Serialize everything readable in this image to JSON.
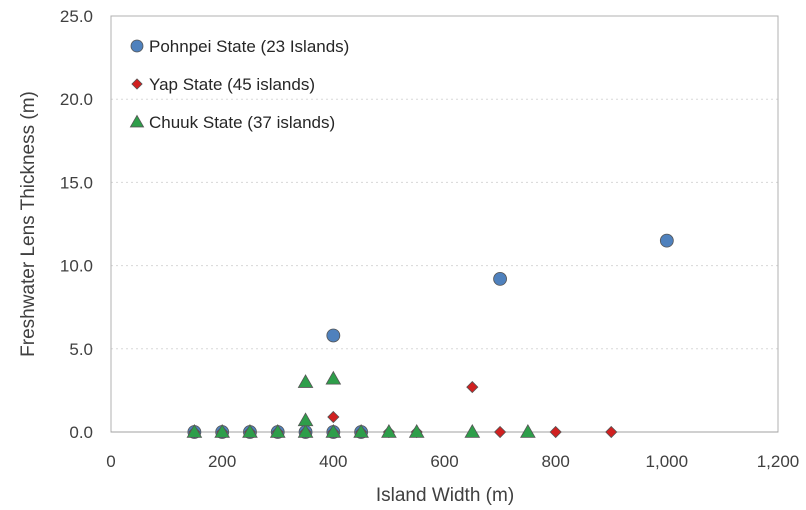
{
  "chart_data": {
    "type": "scatter",
    "xlabel": "Island Width (m)",
    "ylabel": "Freshwater Lens Thickness (m)",
    "xlim": [
      0,
      1200
    ],
    "ylim": [
      0,
      25
    ],
    "x_ticks": [
      0,
      200,
      400,
      600,
      800,
      1000,
      1200
    ],
    "x_tick_labels": [
      "0",
      "200",
      "400",
      "600",
      "800",
      "1,000",
      "1,200"
    ],
    "y_ticks": [
      0,
      5,
      10,
      15,
      20,
      25
    ],
    "y_tick_labels": [
      "0.0",
      "5.0",
      "10.0",
      "15.0",
      "20.0",
      "25.0"
    ],
    "grid": "horizontal dotted",
    "legend_position": "top-left",
    "series": [
      {
        "name": "Pohnpei State (23 Islands)",
        "marker": "circle",
        "color": "#4f81bd",
        "points": [
          [
            150,
            0
          ],
          [
            200,
            0
          ],
          [
            250,
            0
          ],
          [
            300,
            0
          ],
          [
            350,
            0
          ],
          [
            400,
            0
          ],
          [
            450,
            0
          ],
          [
            400,
            5.8
          ],
          [
            700,
            9.2
          ],
          [
            1000,
            11.5
          ]
        ]
      },
      {
        "name": "Yap State (45 islands)",
        "marker": "diamond",
        "color": "#d02020",
        "points": [
          [
            150,
            0
          ],
          [
            200,
            0
          ],
          [
            250,
            0
          ],
          [
            300,
            0
          ],
          [
            350,
            0
          ],
          [
            400,
            0
          ],
          [
            450,
            0
          ],
          [
            500,
            0
          ],
          [
            550,
            0
          ],
          [
            400,
            0.9
          ],
          [
            650,
            2.7
          ],
          [
            700,
            0
          ],
          [
            800,
            0
          ],
          [
            900,
            0
          ]
        ]
      },
      {
        "name": "Chuuk State (37 islands)",
        "marker": "triangle",
        "color": "#2e9e4a",
        "points": [
          [
            150,
            0
          ],
          [
            200,
            0
          ],
          [
            250,
            0
          ],
          [
            300,
            0
          ],
          [
            350,
            0
          ],
          [
            400,
            0
          ],
          [
            450,
            0
          ],
          [
            500,
            0
          ],
          [
            550,
            0
          ],
          [
            350,
            0.7
          ],
          [
            350,
            3.0
          ],
          [
            400,
            3.2
          ],
          [
            650,
            0
          ],
          [
            750,
            0
          ]
        ]
      }
    ]
  }
}
